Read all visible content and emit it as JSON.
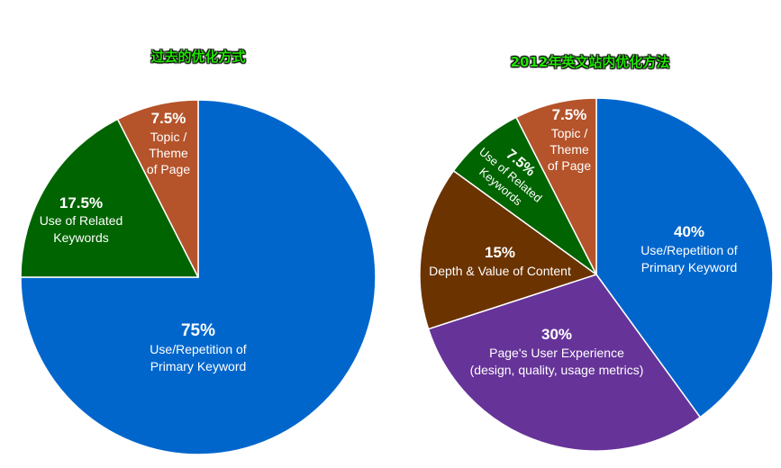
{
  "chart_data": [
    {
      "type": "pie",
      "title": "过去的优化方式",
      "slices": [
        {
          "label": "Use/Repetition of Primary Keyword",
          "lines": [
            "Use/Repetition of",
            "Primary Keyword"
          ],
          "value": 75,
          "value_label": "75%",
          "color": "#0066cc"
        },
        {
          "label": "Use of Related Keywords",
          "lines": [
            "Use of Related",
            "Keywords"
          ],
          "value": 17.5,
          "value_label": "17.5%",
          "color": "#006400"
        },
        {
          "label": "Topic / Theme of Page",
          "lines": [
            "Topic /",
            "Theme",
            "of Page"
          ],
          "value": 7.5,
          "value_label": "7.5%",
          "color": "#b5532a"
        }
      ]
    },
    {
      "type": "pie",
      "title": "2012年英文站内优化方法",
      "slices": [
        {
          "label": "Use/Repetition of Primary Keyword",
          "lines": [
            "Use/Repetition of",
            "Primary Keyword"
          ],
          "value": 40,
          "value_label": "40%",
          "color": "#0066cc"
        },
        {
          "label": "Page's User Experience (design, quality, usage metrics)",
          "lines": [
            "Page's User Experience",
            "(design, quality, usage metrics)"
          ],
          "value": 30,
          "value_label": "30%",
          "color": "#663399"
        },
        {
          "label": "Depth & Value of Content",
          "lines": [
            "Depth & Value of Content"
          ],
          "value": 15,
          "value_label": "15%",
          "color": "#6b3300"
        },
        {
          "label": "Use of Related Keywords",
          "lines": [
            "Use of Related",
            "Keywords"
          ],
          "value": 7.5,
          "value_label": "7.5%",
          "color": "#006400"
        },
        {
          "label": "Topic / Theme of Page",
          "lines": [
            "Topic /",
            "Theme",
            "of Page"
          ],
          "value": 7.5,
          "value_label": "7.5%",
          "color": "#b5532a"
        }
      ]
    }
  ]
}
